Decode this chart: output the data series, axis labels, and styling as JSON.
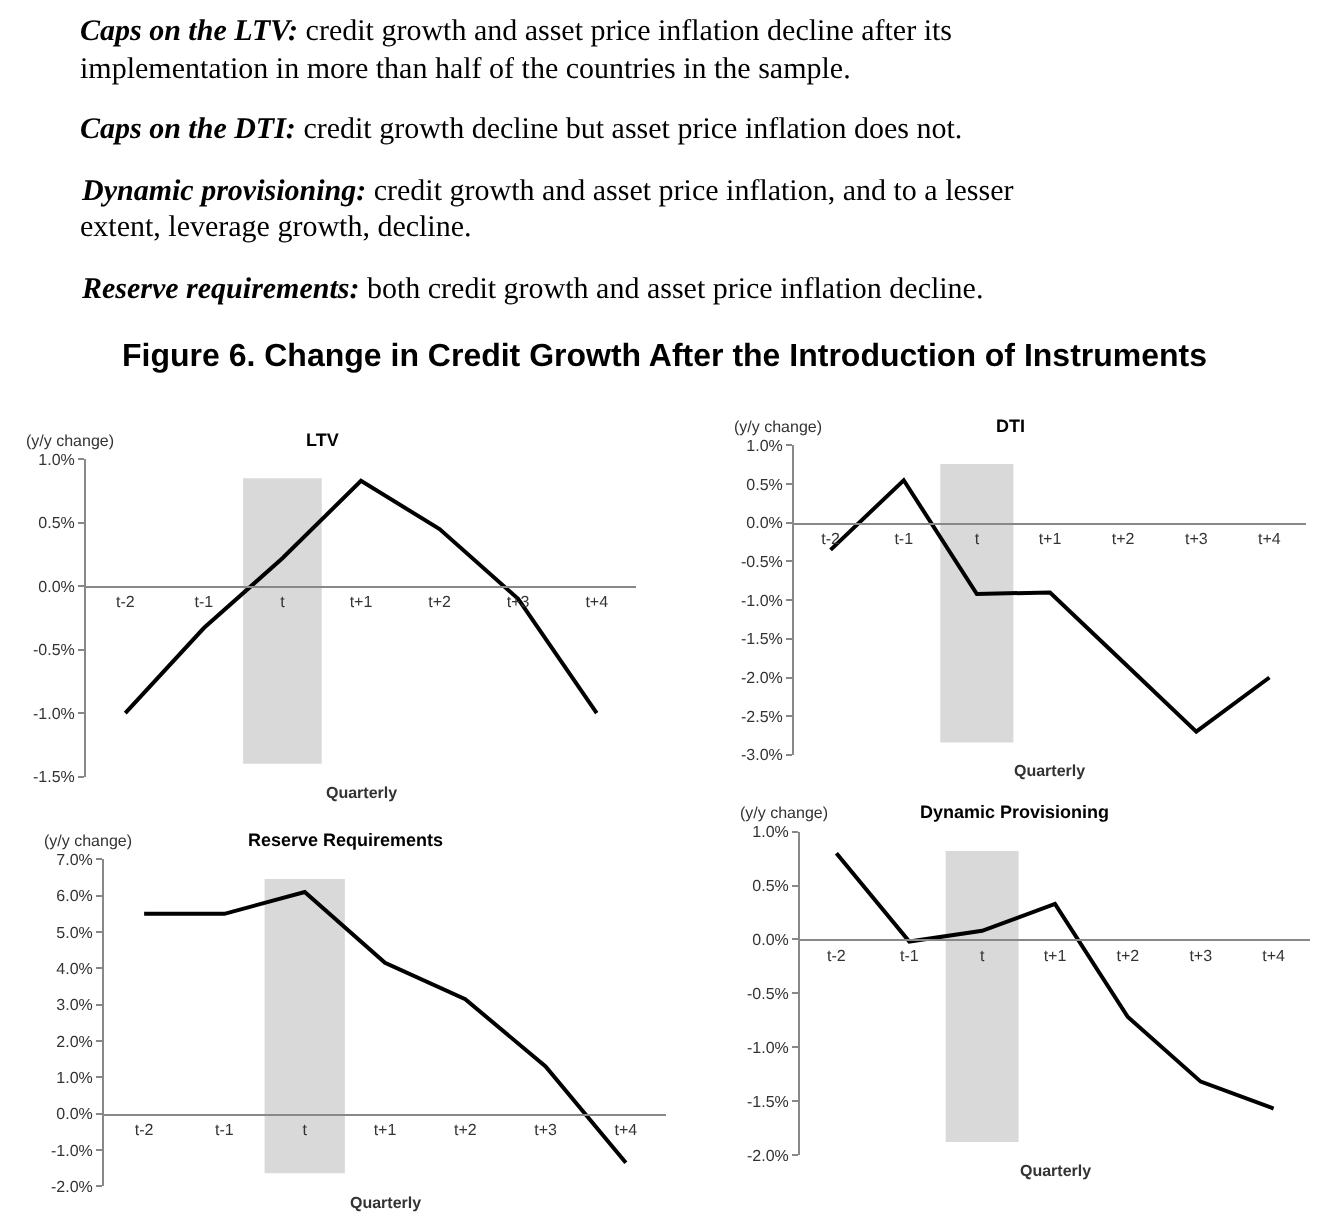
{
  "chart_data": [
    {
      "type": "other",
      "title": "Figure 6. Change in Credit Growth After the Introduction of Instruments",
      "annotations": [
        "Caps on the LTV: credit growth and asset price inflation decline after its implementation in more than half of the countries in the sample.",
        "Caps on the DTI: credit growth decline but asset price inflation does not.",
        "Dynamic provisioning: credit growth and asset price inflation, and to a lesser extent, leverage growth, decline.",
        "Reserve requirements: both credit growth and asset price inflation decline."
      ]
    },
    {
      "type": "line",
      "title": "LTV",
      "xlabel": "Quarterly",
      "ylabel": "(y/y change)",
      "categories": [
        "t-2",
        "t-1",
        "t",
        "t+1",
        "t+2",
        "t+3",
        "t+4"
      ],
      "series": [
        {
          "color": "#000000",
          "values": [
            -1.0,
            -0.33,
            0.22,
            0.83,
            0.45,
            -0.1,
            -1.0
          ]
        }
      ],
      "ylim": [
        -1.5,
        1.0
      ],
      "yticks": [
        {
          "value": -1.5,
          "label": "-1.5%"
        },
        {
          "value": -1.0,
          "label": "-1.0%"
        },
        {
          "value": -0.5,
          "label": "-0.5%"
        },
        {
          "value": 0,
          "label": "0.0%"
        },
        {
          "value": 0.5,
          "label": "0.5%"
        },
        {
          "value": 1.0,
          "label": "1.0%"
        }
      ],
      "bands": [
        {
          "axis": "x",
          "from": "t",
          "to": "t",
          "color": "#d9d9d9"
        }
      ],
      "grid": false,
      "marker": "none",
      "line_style": "solid"
    },
    {
      "type": "line",
      "title": "DTI",
      "xlabel": "Quarterly",
      "ylabel": "(y/y change)",
      "categories": [
        "t-2",
        "t-1",
        "t",
        "t+1",
        "t+2",
        "t+3",
        "t+4"
      ],
      "series": [
        {
          "color": "#000000",
          "values": [
            -0.35,
            0.55,
            -0.92,
            -0.9,
            -1.8,
            -2.7,
            -2.0
          ]
        }
      ],
      "ylim": [
        -3.0,
        1.0
      ],
      "yticks": [
        {
          "value": -3.0,
          "label": "-3.0%"
        },
        {
          "value": -2.5,
          "label": "-2.5%"
        },
        {
          "value": -2.0,
          "label": "-2.0%"
        },
        {
          "value": -1.5,
          "label": "-1.5%"
        },
        {
          "value": -1.0,
          "label": "-1.0%"
        },
        {
          "value": -0.5,
          "label": "-0.5%"
        },
        {
          "value": 0,
          "label": "0.0%"
        },
        {
          "value": 0.5,
          "label": "0.5%"
        },
        {
          "value": 1.0,
          "label": "1.0%"
        }
      ],
      "bands": [
        {
          "axis": "x",
          "from": "t",
          "to": "t",
          "color": "#d9d9d9"
        }
      ],
      "grid": false,
      "marker": "none",
      "line_style": "solid"
    },
    {
      "type": "line",
      "title": "Reserve Requirements",
      "xlabel": "Quarterly",
      "ylabel": "(y/y change)",
      "categories": [
        "t-2",
        "t-1",
        "t",
        "t+1",
        "t+2",
        "t+3",
        "t+4"
      ],
      "series": [
        {
          "color": "#000000",
          "values": [
            5.5,
            5.5,
            6.1,
            4.15,
            3.15,
            1.3,
            -1.35
          ]
        }
      ],
      "ylim": [
        -2.0,
        7.0
      ],
      "yticks": [
        {
          "value": -2.0,
          "label": "-2.0%"
        },
        {
          "value": -1.0,
          "label": "-1.0%"
        },
        {
          "value": 0,
          "label": "0.0%"
        },
        {
          "value": 1.0,
          "label": "1.0%"
        },
        {
          "value": 2.0,
          "label": "2.0%"
        },
        {
          "value": 3.0,
          "label": "3.0%"
        },
        {
          "value": 4.0,
          "label": "4.0%"
        },
        {
          "value": 5.0,
          "label": "5.0%"
        },
        {
          "value": 6.0,
          "label": "6.0%"
        },
        {
          "value": 7.0,
          "label": "7.0%"
        }
      ],
      "bands": [
        {
          "axis": "x",
          "from": "t",
          "to": "t",
          "color": "#d9d9d9"
        }
      ],
      "grid": false,
      "marker": "none",
      "line_style": "solid"
    },
    {
      "type": "line",
      "title": "Dynamic Provisioning",
      "xlabel": "Quarterly",
      "ylabel": "(y/y change)",
      "categories": [
        "t-2",
        "t-1",
        "t",
        "t+1",
        "t+2",
        "t+3",
        "t+4"
      ],
      "series": [
        {
          "color": "#000000",
          "values": [
            0.8,
            -0.02,
            0.08,
            0.33,
            -0.72,
            -1.32,
            -1.57
          ]
        }
      ],
      "ylim": [
        -2.0,
        1.0
      ],
      "yticks": [
        {
          "value": -2.0,
          "label": "-2.0%"
        },
        {
          "value": -1.5,
          "label": "-1.5%"
        },
        {
          "value": -1.0,
          "label": "-1.0%"
        },
        {
          "value": -0.5,
          "label": "-0.5%"
        },
        {
          "value": 0,
          "label": "0.0%"
        },
        {
          "value": 0.5,
          "label": "0.5%"
        },
        {
          "value": 1.0,
          "label": "1.0%"
        }
      ],
      "bands": [
        {
          "axis": "x",
          "from": "t",
          "to": "t",
          "color": "#d9d9d9"
        }
      ],
      "grid": false,
      "marker": "none",
      "line_style": "solid"
    }
  ]
}
